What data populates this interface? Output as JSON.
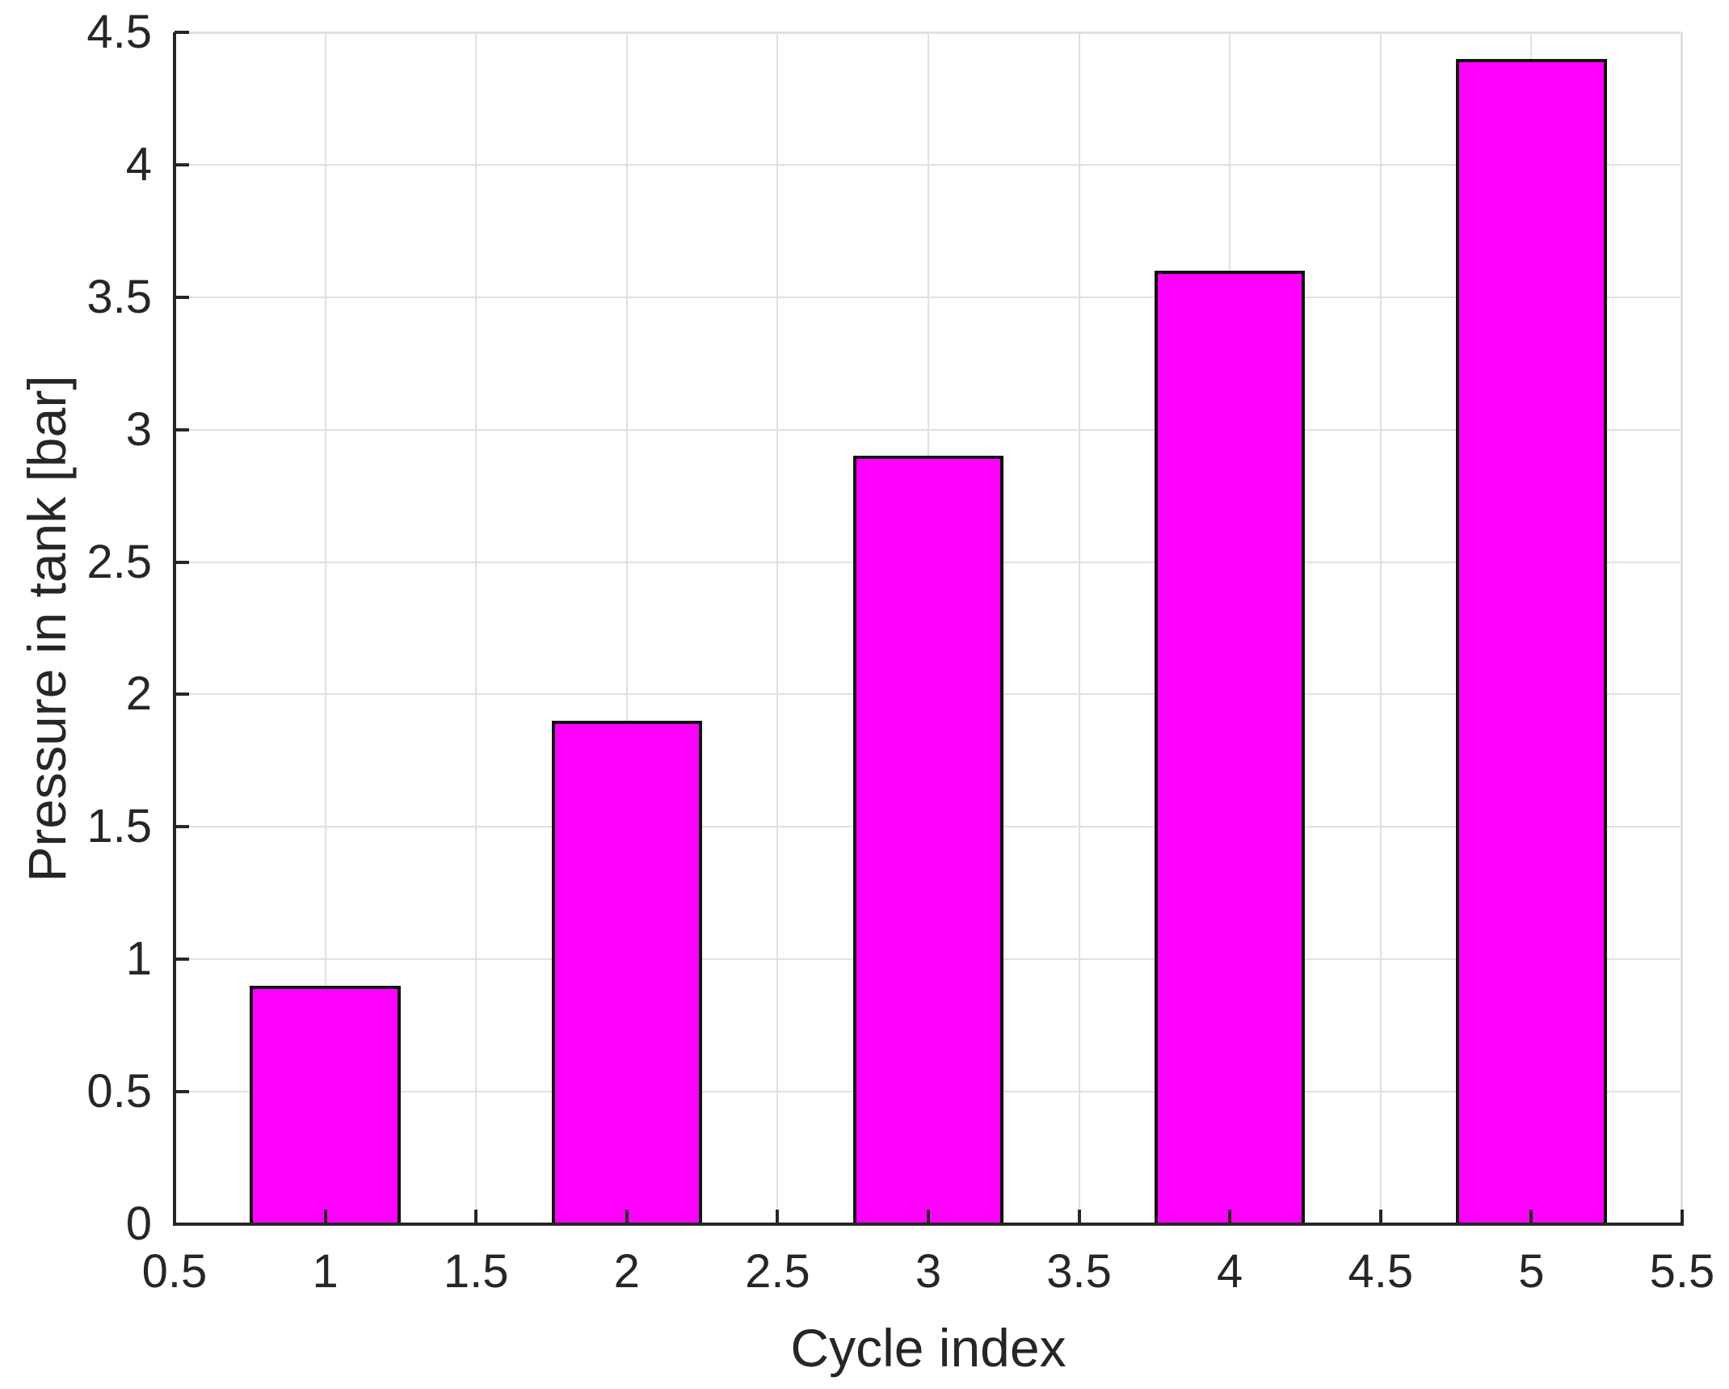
{
  "chart_data": {
    "type": "bar",
    "title": "",
    "xlabel": "Cycle index",
    "ylabel": "Pressure in tank [bar]",
    "x": [
      1,
      2,
      3,
      4,
      5
    ],
    "values": [
      0.9,
      1.9,
      2.9,
      3.6,
      4.4
    ],
    "bar_width": 0.5,
    "xlim": [
      0.5,
      5.5
    ],
    "ylim": [
      0,
      4.5
    ],
    "xticks": [
      0.5,
      1,
      1.5,
      2,
      2.5,
      3,
      3.5,
      4,
      4.5,
      5,
      5.5
    ],
    "xtick_labels": [
      "0.5",
      "1",
      "1.5",
      "2",
      "2.5",
      "3",
      "3.5",
      "4",
      "4.5",
      "5",
      "5.5"
    ],
    "yticks": [
      0,
      0.5,
      1,
      1.5,
      2,
      2.5,
      3,
      3.5,
      4,
      4.5
    ],
    "ytick_labels": [
      "0",
      "0.5",
      "1",
      "1.5",
      "2",
      "2.5",
      "3",
      "3.5",
      "4",
      "4.5"
    ],
    "grid": true,
    "legend": null,
    "colors": {
      "bar_fill": "#ff00ff",
      "bar_edge": "#111111",
      "axis": "#262626",
      "grid": "#e0e0e0",
      "text": "#262626"
    }
  }
}
